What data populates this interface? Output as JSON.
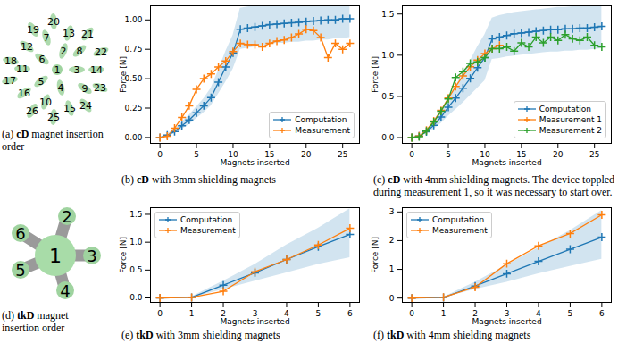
{
  "chart_data": [
    {
      "type": "line",
      "caption": [
        "(b) ",
        "cD",
        " with 3mm shielding magnets"
      ],
      "xlabel": "Magnets inserted",
      "ylabel": "Force [N]",
      "x": [
        0,
        1,
        2,
        3,
        4,
        5,
        6,
        7,
        8,
        9,
        10,
        11,
        12,
        13,
        14,
        15,
        16,
        17,
        18,
        19,
        20,
        21,
        22,
        23,
        24,
        25,
        26
      ],
      "series": [
        {
          "name": "Computation",
          "color": "#1f77b4",
          "marker": "plus",
          "values": [
            0,
            0.02,
            0.05,
            0.1,
            0.15,
            0.21,
            0.27,
            0.34,
            0.47,
            0.6,
            0.72,
            0.92,
            0.93,
            0.94,
            0.95,
            0.96,
            0.965,
            0.97,
            0.975,
            0.98,
            0.985,
            0.99,
            0.995,
            1.0,
            1.0,
            1.01,
            1.01
          ],
          "lower": [
            0,
            0.01,
            0.03,
            0.07,
            0.11,
            0.16,
            0.21,
            0.27,
            0.37,
            0.47,
            0.58,
            0.75,
            0.76,
            0.77,
            0.78,
            0.79,
            0.8,
            0.8,
            0.81,
            0.81,
            0.82,
            0.82,
            0.83,
            0.83,
            0.84,
            0.84,
            0.85
          ],
          "upper": [
            0,
            0.03,
            0.07,
            0.13,
            0.19,
            0.26,
            0.33,
            0.42,
            0.57,
            0.73,
            0.87,
            1.1,
            1.11,
            1.12,
            1.13,
            1.14,
            1.15,
            1.16,
            1.16,
            1.17,
            1.17,
            1.18,
            1.18,
            1.19,
            1.19,
            1.2,
            1.2
          ]
        },
        {
          "name": "Measurement",
          "color": "#ff7f0e",
          "marker": "plus",
          "values": [
            0,
            0.01,
            0.08,
            0.17,
            0.27,
            0.41,
            0.5,
            0.54,
            0.6,
            0.65,
            0.73,
            0.8,
            0.79,
            0.79,
            0.77,
            0.8,
            0.82,
            0.83,
            0.85,
            0.88,
            0.92,
            0.91,
            0.85,
            0.68,
            0.8,
            0.75,
            0.8
          ]
        }
      ],
      "xlim": [
        -1.3,
        27.3
      ],
      "xticks": [
        0,
        5,
        10,
        15,
        20,
        25
      ],
      "ylim": [
        -0.05,
        1.12
      ],
      "yticks": [
        {
          "value": 0,
          "label": "0.00"
        },
        {
          "value": 0.25,
          "label": "0.25"
        },
        {
          "value": 0.5,
          "label": "0.50"
        },
        {
          "value": 0.75,
          "label": "0.75"
        },
        {
          "value": 1,
          "label": "1.00"
        }
      ],
      "legend": "lower right",
      "grid": false
    },
    {
      "type": "line",
      "caption": [
        "(c) ",
        "cD",
        " with 4mm shielding magnets. The device toppled during measurement 1, so it was necessary to start over."
      ],
      "xlabel": "Magnets inserted",
      "ylabel": "Force [N]",
      "x": [
        0,
        1,
        2,
        3,
        4,
        5,
        6,
        7,
        8,
        9,
        10,
        11,
        12,
        13,
        14,
        15,
        16,
        17,
        18,
        19,
        20,
        21,
        22,
        23,
        24,
        25,
        26
      ],
      "series": [
        {
          "name": "Computation",
          "color": "#1f77b4",
          "marker": "plus",
          "values": [
            0,
            0.02,
            0.07,
            0.15,
            0.25,
            0.37,
            0.48,
            0.6,
            0.72,
            0.85,
            0.97,
            1.2,
            1.22,
            1.24,
            1.26,
            1.27,
            1.28,
            1.29,
            1.3,
            1.31,
            1.31,
            1.32,
            1.32,
            1.33,
            1.33,
            1.34,
            1.35
          ],
          "lower": [
            0,
            0.01,
            0.05,
            0.1,
            0.17,
            0.26,
            0.34,
            0.42,
            0.51,
            0.6,
            0.69,
            0.95,
            0.96,
            0.98,
            0.99,
            1.0,
            1.01,
            1.02,
            1.03,
            1.04,
            1.04,
            1.05,
            1.05,
            1.06,
            1.06,
            1.07,
            1.08
          ],
          "upper": [
            0,
            0.03,
            0.09,
            0.2,
            0.33,
            0.48,
            0.62,
            0.78,
            0.93,
            1.1,
            1.25,
            1.45,
            1.48,
            1.5,
            1.52,
            1.53,
            1.54,
            1.55,
            1.56,
            1.57,
            1.58,
            1.58,
            1.59,
            1.59,
            1.6,
            1.6,
            1.61
          ]
        },
        {
          "name": "Measurement 1",
          "color": "#ff7f0e",
          "marker": "plus",
          "values": [
            0,
            0.02,
            0.09,
            0.2,
            0.33,
            0.48,
            0.62,
            0.75,
            0.86,
            0.94,
            1.02,
            1.08,
            1.12,
            null,
            null,
            null,
            null,
            null,
            null,
            null,
            null,
            null,
            null,
            null,
            null,
            null,
            null
          ]
        },
        {
          "name": "Measurement 2",
          "color": "#2ca02c",
          "marker": "plus",
          "values": [
            0,
            0.01,
            0.08,
            0.19,
            0.32,
            0.47,
            0.73,
            0.8,
            0.9,
            0.92,
            0.97,
            1.08,
            1.08,
            1.1,
            1.05,
            1.15,
            1.1,
            1.22,
            1.15,
            1.22,
            1.18,
            1.25,
            1.2,
            1.18,
            1.22,
            1.12,
            1.1
          ]
        }
      ],
      "xlim": [
        -1.3,
        27.3
      ],
      "xticks": [
        0,
        5,
        10,
        15,
        20,
        25
      ],
      "ylim": [
        -0.07,
        1.6
      ],
      "yticks": [
        {
          "value": 0,
          "label": "0.0"
        },
        0.5,
        {
          "value": 1,
          "label": "1.0"
        },
        1.5
      ],
      "legend": "lower right",
      "grid": false
    },
    {
      "type": "line",
      "caption": [
        "(e) ",
        "tkD",
        " with 3mm shielding magnets"
      ],
      "xlabel": "Magnets inserted",
      "ylabel": "Force [N]",
      "x": [
        0,
        1,
        2,
        3,
        4,
        5,
        6
      ],
      "series": [
        {
          "name": "Computation",
          "color": "#1f77b4",
          "marker": "plus",
          "values": [
            0,
            0.01,
            0.23,
            0.45,
            0.69,
            0.92,
            1.14
          ],
          "lower": [
            0,
            0,
            0.15,
            0.3,
            0.45,
            0.6,
            0.72
          ],
          "upper": [
            0,
            0.02,
            0.3,
            0.6,
            0.95,
            1.25,
            1.6
          ]
        },
        {
          "name": "Measurement",
          "color": "#ff7f0e",
          "marker": "plus",
          "values": [
            0,
            0.01,
            0.12,
            0.47,
            0.69,
            0.95,
            1.25
          ]
        }
      ],
      "xlim": [
        -0.3,
        6.3
      ],
      "xticks": [
        0,
        1,
        2,
        3,
        4,
        5,
        6
      ],
      "ylim": [
        -0.08,
        1.62
      ],
      "yticks": [
        {
          "value": 0,
          "label": "0.0"
        },
        0.5,
        {
          "value": 1,
          "label": "1.0"
        },
        1.5
      ],
      "legend": "upper left",
      "grid": false
    },
    {
      "type": "line",
      "caption": [
        "(f) ",
        "tkD",
        " with 4mm shielding magnets"
      ],
      "xlabel": "Magnets inserted",
      "ylabel": "Force [N]",
      "x": [
        0,
        1,
        2,
        3,
        4,
        5,
        6
      ],
      "series": [
        {
          "name": "Computation",
          "color": "#1f77b4",
          "marker": "plus",
          "values": [
            0,
            0.02,
            0.42,
            0.85,
            1.28,
            1.7,
            2.12
          ],
          "lower": [
            0,
            0.01,
            0.3,
            0.55,
            0.85,
            1.1,
            1.35
          ],
          "upper": [
            0,
            0.03,
            0.55,
            1.15,
            1.75,
            2.35,
            3.05
          ]
        },
        {
          "name": "Measurement",
          "color": "#ff7f0e",
          "marker": "plus",
          "values": [
            0,
            0.03,
            0.38,
            1.2,
            1.82,
            2.25,
            2.9
          ]
        }
      ],
      "xlim": [
        -0.3,
        6.3
      ],
      "xticks": [
        0,
        1,
        2,
        3,
        4,
        5,
        6
      ],
      "ylim": [
        -0.15,
        3.15
      ],
      "yticks": [
        0,
        1,
        2,
        3
      ],
      "legend": "upper left",
      "grid": false
    }
  ],
  "diagrams": [
    {
      "caption": [
        "(a) ",
        "cD",
        " magnet insertion order"
      ],
      "nodes": [
        "1",
        "2",
        "3",
        "4",
        "5",
        "6",
        "7",
        "8",
        "9",
        "10",
        "11",
        "12",
        "13",
        "14",
        "15",
        "16",
        "17",
        "18",
        "19",
        "20",
        "21",
        "22",
        "23",
        "24",
        "25",
        "26"
      ]
    },
    {
      "caption": [
        "(d) ",
        "tkD",
        " magnet insertion order"
      ],
      "nodes": [
        "1",
        "2",
        "3",
        "4",
        "5",
        "6"
      ]
    }
  ]
}
